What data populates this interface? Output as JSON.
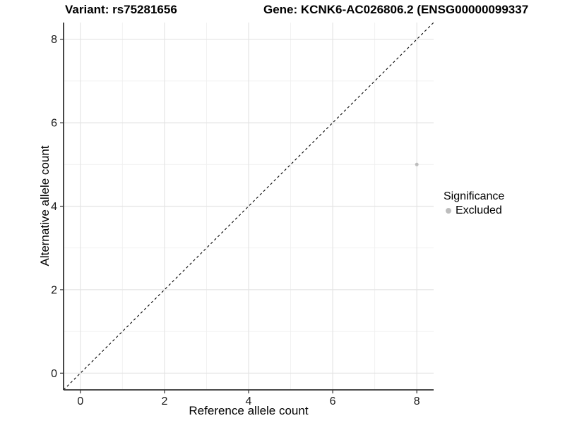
{
  "chart_data": {
    "type": "scatter",
    "title_left": "Variant: rs75281656",
    "title_right": "Gene: KCNK6-AC026806.2 (ENSG00000099337",
    "xlabel": "Reference allele count",
    "ylabel": "Alternative allele count",
    "xlim": [
      -0.4,
      8.4
    ],
    "ylim": [
      -0.4,
      8.4
    ],
    "x_ticks": [
      0,
      2,
      4,
      6,
      8
    ],
    "y_ticks": [
      0,
      2,
      4,
      6,
      8
    ],
    "x_minor_ticks": [
      1,
      3,
      5,
      7
    ],
    "y_minor_ticks": [
      1,
      3,
      5,
      7
    ],
    "grid": true,
    "series": [
      {
        "name": "Excluded",
        "color": "#bdbdbd",
        "points": [
          {
            "x": 8,
            "y": 5
          }
        ]
      }
    ],
    "reference_line": {
      "type": "identity",
      "style": "dashed",
      "color": "#000000",
      "note": "y = x diagonal from panel corner to corner"
    },
    "legend": {
      "title": "Significance",
      "position": "right",
      "entries": [
        {
          "label": "Excluded",
          "color": "#bdbdbd"
        }
      ]
    },
    "colors": {
      "background": "#ffffff",
      "axis_line": "#333333",
      "tick_mark": "#333333",
      "tick_label": "#1a1a1a",
      "grid_major": "#e4e4e4",
      "grid_minor": "#f0f0f0",
      "point": "#bdbdbd"
    }
  }
}
